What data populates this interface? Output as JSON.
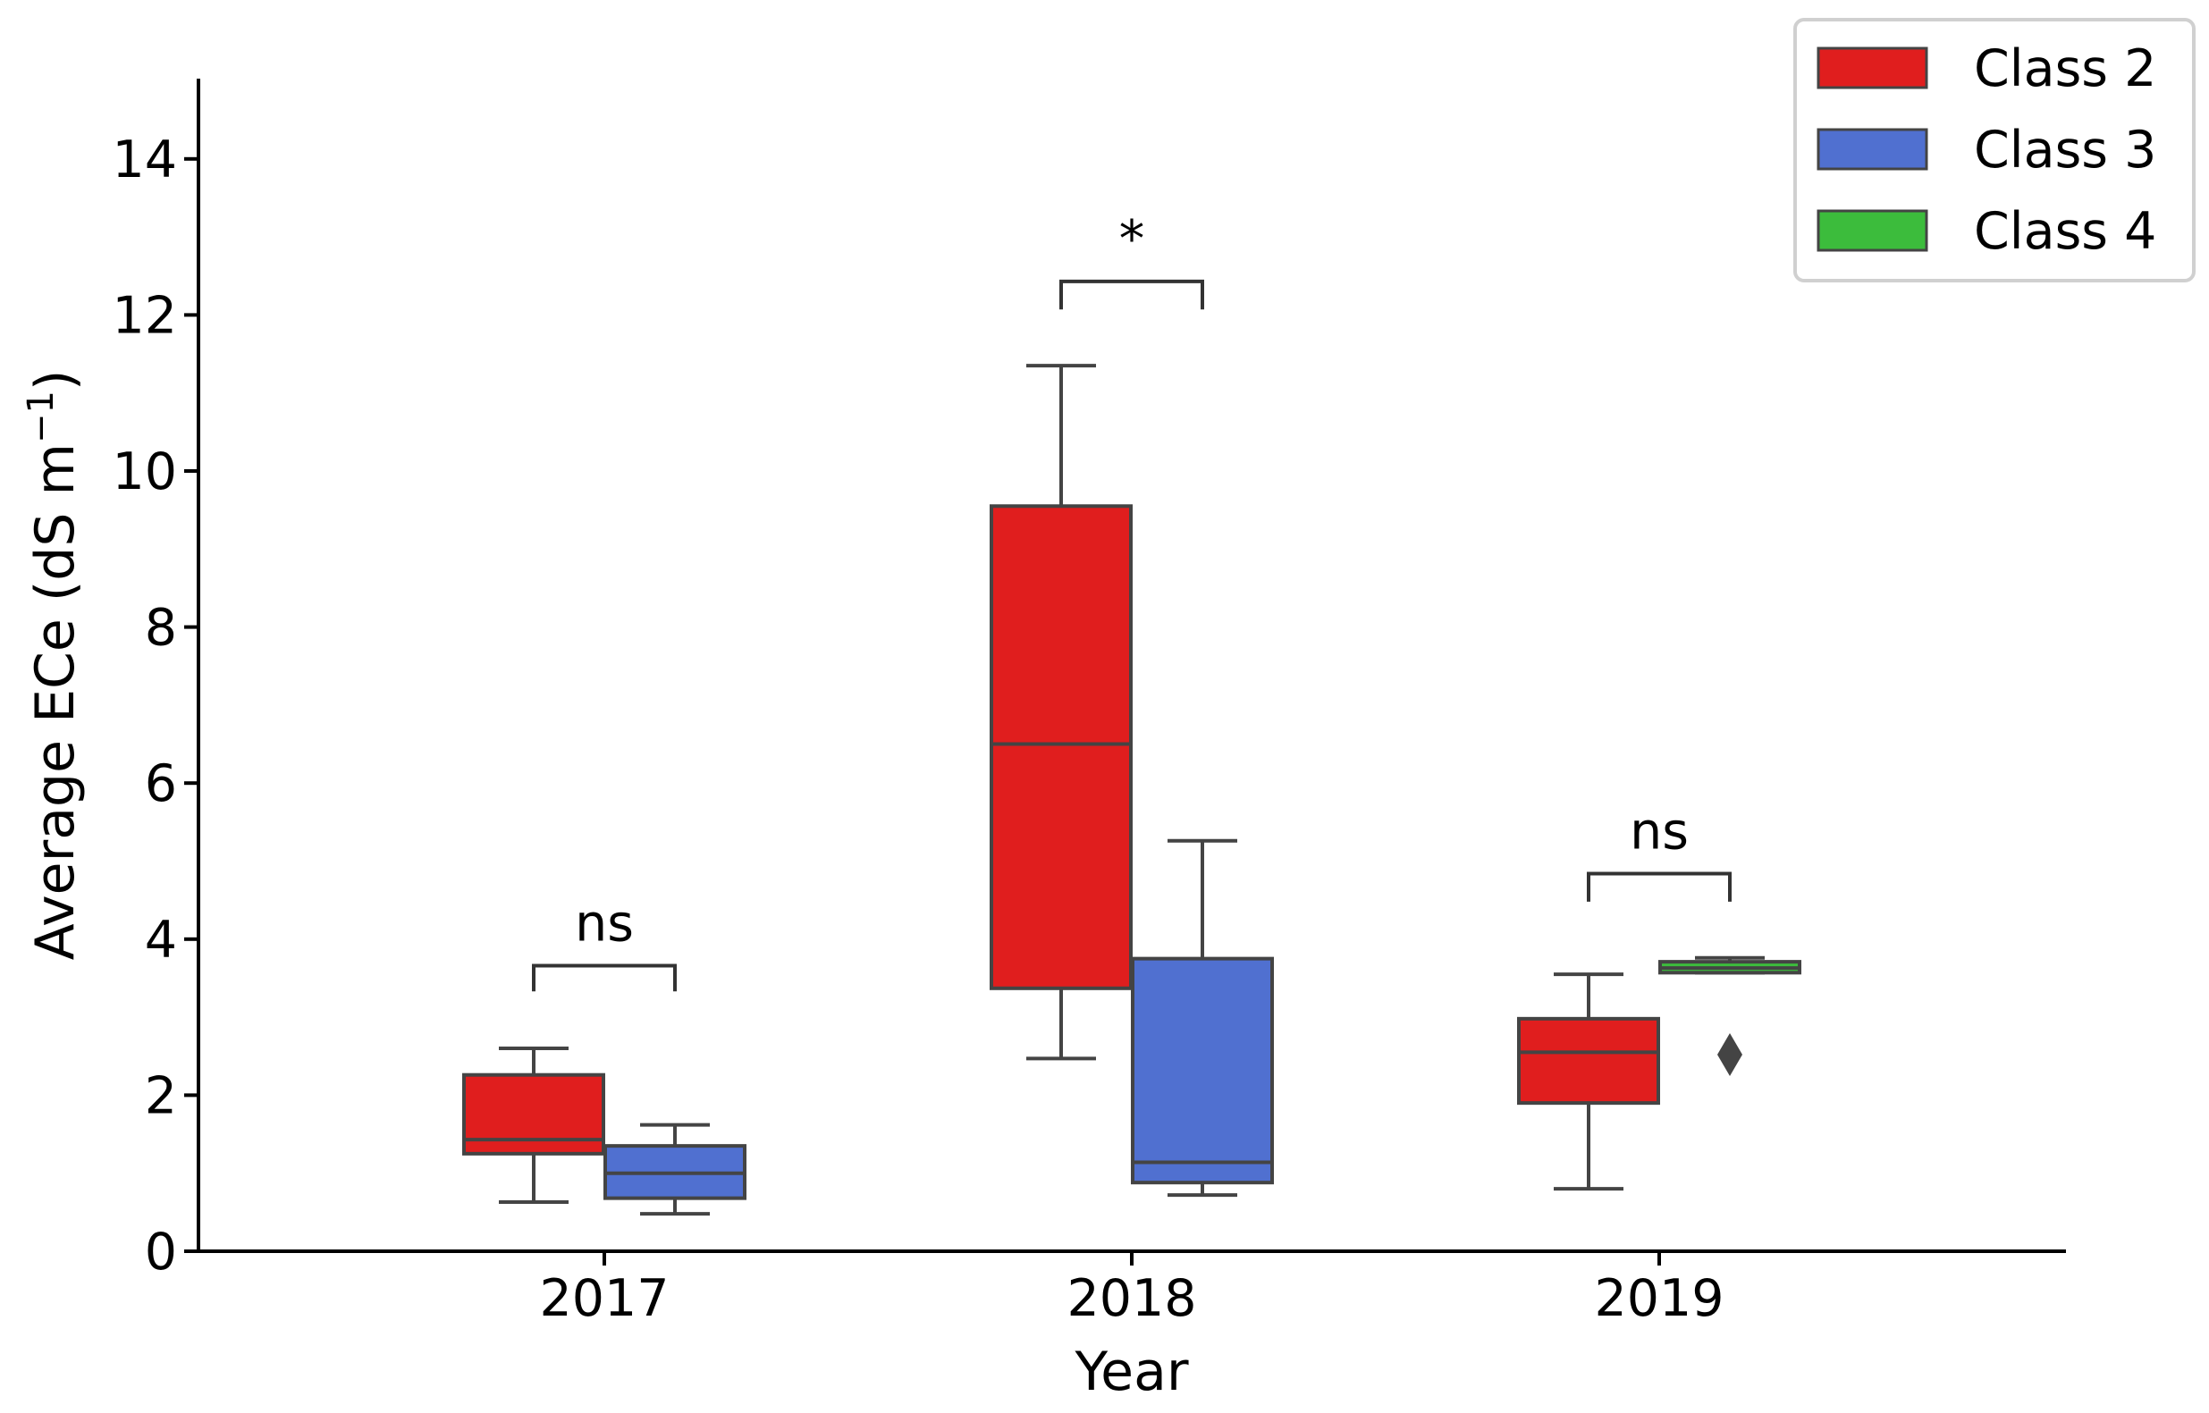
{
  "chart_data": {
    "type": "box",
    "title": "",
    "xlabel": "Year",
    "ylabel": "Average ECe (dS m",
    "ylabel_superscript": "−1",
    "ylabel_close": ")",
    "ylim": [
      0,
      15
    ],
    "yticks": [
      0,
      2,
      4,
      6,
      8,
      10,
      12,
      14
    ],
    "ytick_labels": [
      "0",
      "2",
      "4",
      "6",
      "8",
      "10",
      "12",
      "14"
    ],
    "categories": [
      "2017",
      "2018",
      "2019"
    ],
    "grid": false,
    "legend_position": "top-right",
    "series": [
      {
        "name": "Class 2",
        "color": "#e01e1e",
        "boxes": [
          {
            "category": "2017",
            "whisker_low": 0.63,
            "q1": 1.25,
            "median": 1.43,
            "q3": 2.26,
            "whisker_high": 2.6,
            "outliers": []
          },
          {
            "category": "2018",
            "whisker_low": 2.47,
            "q1": 3.37,
            "median": 6.5,
            "q3": 9.55,
            "whisker_high": 11.35,
            "outliers": []
          },
          {
            "category": "2019",
            "whisker_low": 0.8,
            "q1": 1.9,
            "median": 2.55,
            "q3": 2.98,
            "whisker_high": 3.55,
            "outliers": []
          }
        ]
      },
      {
        "name": "Class 3",
        "color": "#5070d0",
        "boxes": [
          {
            "category": "2017",
            "whisker_low": 0.48,
            "q1": 0.68,
            "median": 1.0,
            "q3": 1.35,
            "whisker_high": 1.62,
            "outliers": []
          },
          {
            "category": "2018",
            "whisker_low": 0.72,
            "q1": 0.88,
            "median": 1.14,
            "q3": 3.75,
            "whisker_high": 5.26,
            "outliers": []
          }
        ]
      },
      {
        "name": "Class 4",
        "color": "#3cbc3c",
        "boxes": [
          {
            "category": "2019",
            "whisker_low": 3.57,
            "q1": 3.57,
            "median": 3.63,
            "q3": 3.71,
            "whisker_high": 3.76,
            "outliers": [
              2.52
            ]
          }
        ]
      }
    ],
    "annotations": [
      {
        "text": "ns",
        "category": "2017",
        "from_series": "Class 2",
        "to_series": "Class 3",
        "bracket_y": 3.66,
        "leg_low": 3.33
      },
      {
        "text": "*",
        "category": "2018",
        "from_series": "Class 2",
        "to_series": "Class 3",
        "bracket_y": 12.43,
        "leg_low": 12.07
      },
      {
        "text": "ns",
        "category": "2019",
        "from_series": "Class 2",
        "to_series": "Class 4",
        "bracket_y": 4.84,
        "leg_low": 4.48
      }
    ]
  }
}
